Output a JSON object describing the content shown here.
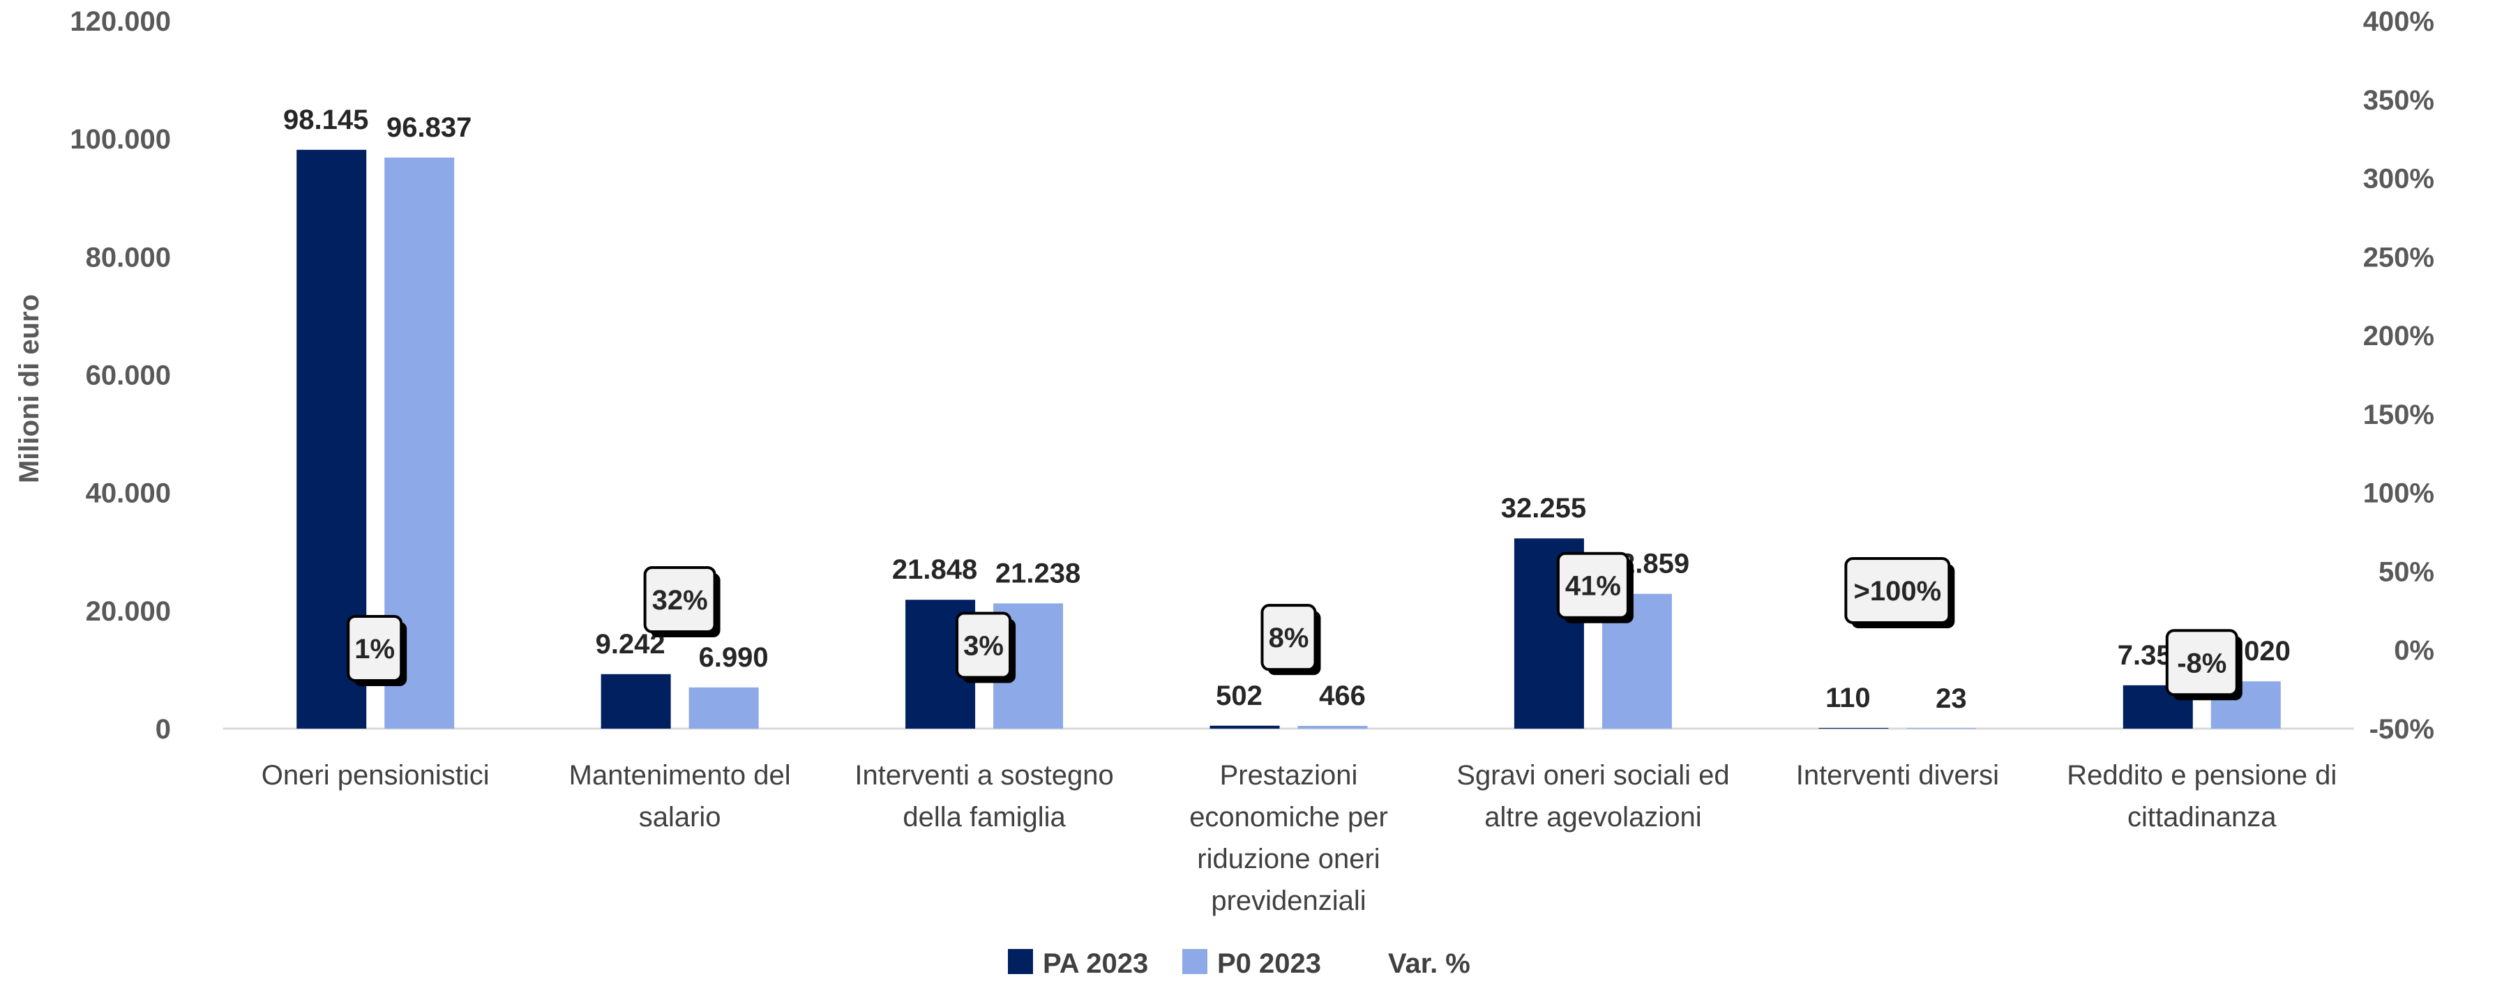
{
  "chart_data": {
    "type": "bar",
    "ylabel": "Milioni di euro",
    "ylim": [
      0,
      120000
    ],
    "y_ticks": [
      "0",
      "20.000",
      "40.000",
      "60.000",
      "80.000",
      "100.000",
      "120.000"
    ],
    "y2lim": [
      -0.5,
      4.0
    ],
    "y2_ticks": [
      "-50%",
      "0%",
      "50%",
      "100%",
      "150%",
      "200%",
      "250%",
      "300%",
      "350%",
      "400%"
    ],
    "categories": [
      [
        "Oneri pensionistici"
      ],
      [
        "Mantenimento del",
        "salario"
      ],
      [
        "Interventi a sostegno",
        "della famiglia"
      ],
      [
        "Prestazioni",
        "economiche per",
        "riduzione oneri",
        "previdenziali"
      ],
      [
        "Sgravi oneri sociali ed",
        "altre agevolazioni"
      ],
      [
        "Interventi diversi"
      ],
      [
        "Reddito e pensione di",
        "cittadinanza"
      ]
    ],
    "series": [
      {
        "name": "PA 2023",
        "color": "#002060",
        "values": [
          98145,
          9242,
          21848,
          502,
          32255,
          110,
          7354
        ],
        "labels": [
          "98.145",
          "9.242",
          "21.848",
          "502",
          "32.255",
          "110",
          "7.354"
        ]
      },
      {
        "name": "P0 2023",
        "color": "#8EA9E8",
        "values": [
          96837,
          6990,
          21238,
          466,
          22859,
          23,
          8020
        ],
        "labels": [
          "96.837",
          "6.990",
          "21.238",
          "466",
          "22.859",
          "23",
          "8.020"
        ]
      },
      {
        "name": "Var. %",
        "axis": "secondary",
        "values": [
          0.01,
          0.32,
          0.03,
          0.08,
          0.41,
          null,
          -0.08
        ],
        "labels": [
          "1%",
          "32%",
          "3%",
          "8%",
          "41%",
          ">100%",
          "-8%"
        ]
      }
    ],
    "legend": {
      "position": "bottom"
    },
    "grid": false
  }
}
